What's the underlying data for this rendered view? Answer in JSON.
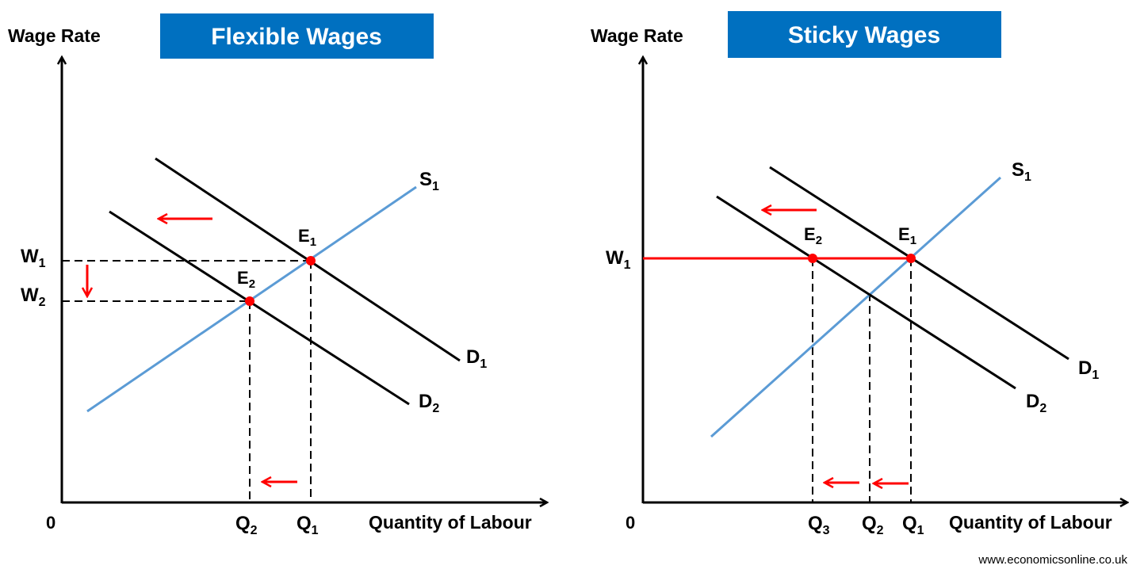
{
  "colors": {
    "title_bg": "#0070C0",
    "supply": "#5B9BD5",
    "demand": "#000000",
    "equilibrium": "#FF0000",
    "arrow": "#FF0000"
  },
  "left": {
    "title": "Flexible Wages",
    "y_axis_label": "Wage Rate",
    "x_axis_label": "Quantity of Labour",
    "origin": "0",
    "supply_label": {
      "main": "S",
      "sub": "1"
    },
    "demand1_label": {
      "main": "D",
      "sub": "1"
    },
    "demand2_label": {
      "main": "D",
      "sub": "2"
    },
    "eq1_label": {
      "main": "E",
      "sub": "1"
    },
    "eq2_label": {
      "main": "E",
      "sub": "2"
    },
    "w1_label": {
      "main": "W",
      "sub": "1"
    },
    "w2_label": {
      "main": "W",
      "sub": "2"
    },
    "q1_label": {
      "main": "Q",
      "sub": "1"
    },
    "q2_label": {
      "main": "Q",
      "sub": "2"
    }
  },
  "right": {
    "title": "Sticky Wages",
    "y_axis_label": "Wage Rate",
    "x_axis_label": "Quantity of Labour",
    "origin": "0",
    "supply_label": {
      "main": "S",
      "sub": "1"
    },
    "demand1_label": {
      "main": "D",
      "sub": "1"
    },
    "demand2_label": {
      "main": "D",
      "sub": "2"
    },
    "eq1_label": {
      "main": "E",
      "sub": "1"
    },
    "eq2_label": {
      "main": "E",
      "sub": "2"
    },
    "w1_label": {
      "main": "W",
      "sub": "1"
    },
    "q1_label": {
      "main": "Q",
      "sub": "1"
    },
    "q2_label": {
      "main": "Q",
      "sub": "2"
    },
    "q3_label": {
      "main": "Q",
      "sub": "3"
    }
  },
  "credit": "www.economicsonline.co.uk"
}
